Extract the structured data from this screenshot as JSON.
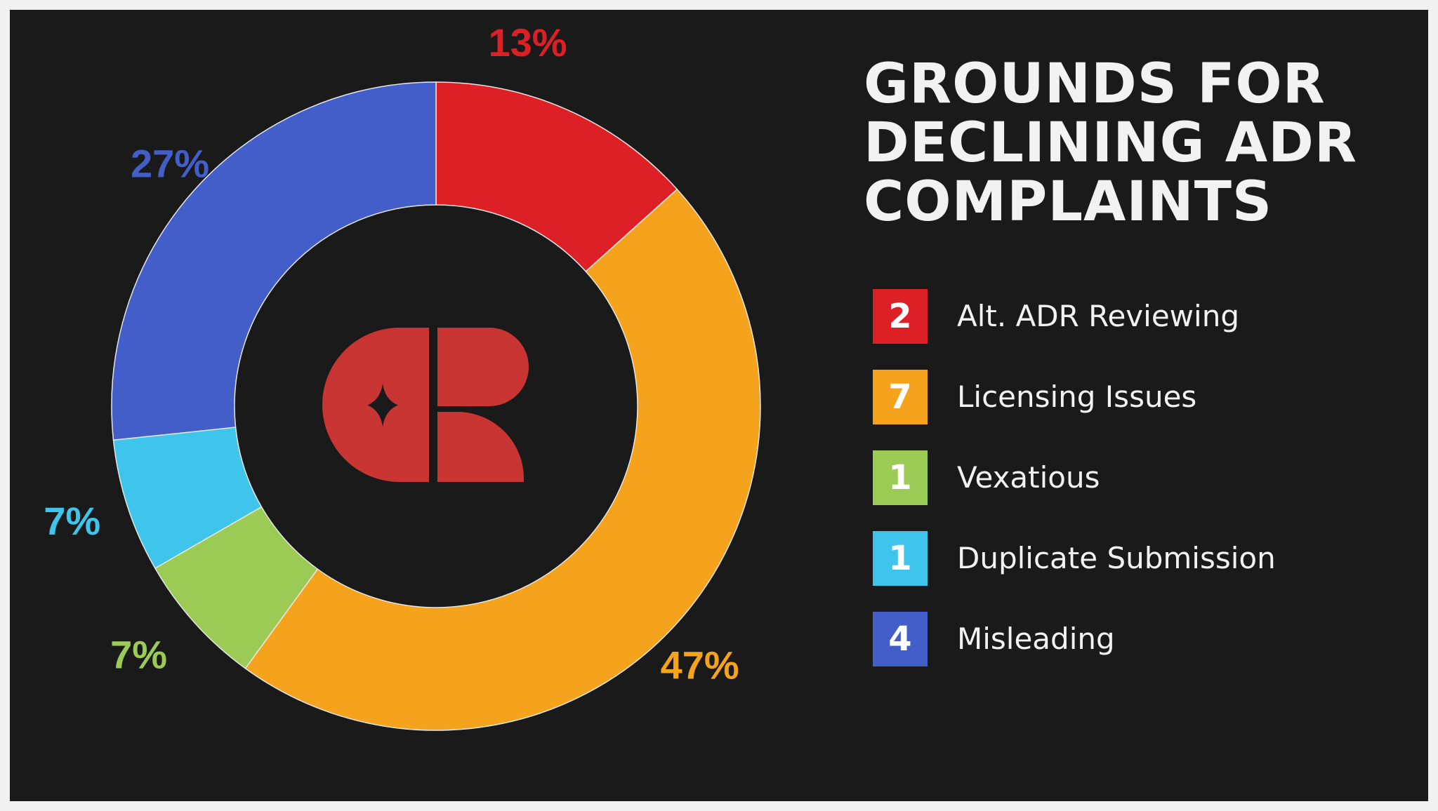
{
  "title_lines": [
    "GROUNDS FOR",
    "DECLINING ADR",
    "COMPLAINTS"
  ],
  "chart_data": {
    "type": "pie",
    "title": "GROUNDS FOR DECLINING ADR COMPLAINTS",
    "donut": true,
    "categories": [
      "Alt. ADR Reviewing",
      "Licensing Issues",
      "Vexatious",
      "Duplicate Submission",
      "Misleading"
    ],
    "values": [
      2,
      7,
      1,
      1,
      4
    ],
    "percent_labels": [
      "13%",
      "47%",
      "7%",
      "7%",
      "27%"
    ],
    "colors": [
      "#dd1f26",
      "#f5a31c",
      "#9ccb55",
      "#3fc4eb",
      "#435ec9"
    ],
    "legend": "right"
  },
  "legend": [
    {
      "count": "2",
      "label": "Alt. ADR Reviewing"
    },
    {
      "count": "7",
      "label": "Licensing Issues"
    },
    {
      "count": "1",
      "label": "Vexatious"
    },
    {
      "count": "1",
      "label": "Duplicate Submission"
    },
    {
      "count": "4",
      "label": "Misleading"
    }
  ],
  "logo": {
    "name": "CR monogram",
    "color": "#c83533"
  }
}
